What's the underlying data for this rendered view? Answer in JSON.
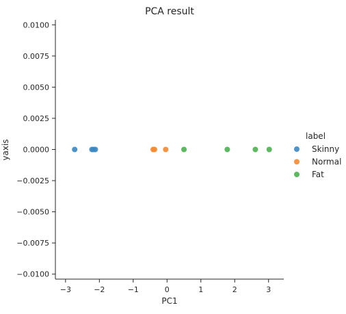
{
  "chart_data": {
    "type": "scatter",
    "title": "PCA result",
    "xlabel": "PC1",
    "ylabel": "yaxis",
    "xlim": [
      -3.3,
      3.45
    ],
    "ylim": [
      -0.0104,
      0.0104
    ],
    "xticks": [
      -3,
      -2,
      -1,
      0,
      1,
      2,
      3
    ],
    "xtick_labels": [
      "−3",
      "−2",
      "−1",
      "0",
      "1",
      "2",
      "3"
    ],
    "yticks": [
      0.01,
      0.0075,
      0.005,
      0.0025,
      0.0,
      -0.0025,
      -0.005,
      -0.0075,
      -0.01
    ],
    "ytick_labels": [
      "0.0100",
      "0.0075",
      "0.0050",
      "0.0025",
      "0.0000",
      "−0.0025",
      "−0.0050",
      "−0.0075",
      "−0.0100"
    ],
    "grid": false,
    "legend": {
      "title": "label",
      "placement": "right"
    },
    "series": [
      {
        "name": "Skinny",
        "color": "#3b87c2",
        "points": [
          {
            "x": -2.73,
            "y": 0.0
          },
          {
            "x": -2.22,
            "y": 0.0
          },
          {
            "x": -2.17,
            "y": 0.0
          },
          {
            "x": -2.12,
            "y": 0.0
          }
        ]
      },
      {
        "name": "Normal",
        "color": "#f28a30",
        "points": [
          {
            "x": -0.41,
            "y": 0.0
          },
          {
            "x": -0.37,
            "y": 0.0
          },
          {
            "x": -0.04,
            "y": 0.0
          }
        ]
      },
      {
        "name": "Fat",
        "color": "#4caf50",
        "points": [
          {
            "x": 0.5,
            "y": 0.0
          },
          {
            "x": 1.78,
            "y": 0.0
          },
          {
            "x": 2.61,
            "y": 0.0
          },
          {
            "x": 3.02,
            "y": 0.0
          }
        ]
      }
    ]
  }
}
